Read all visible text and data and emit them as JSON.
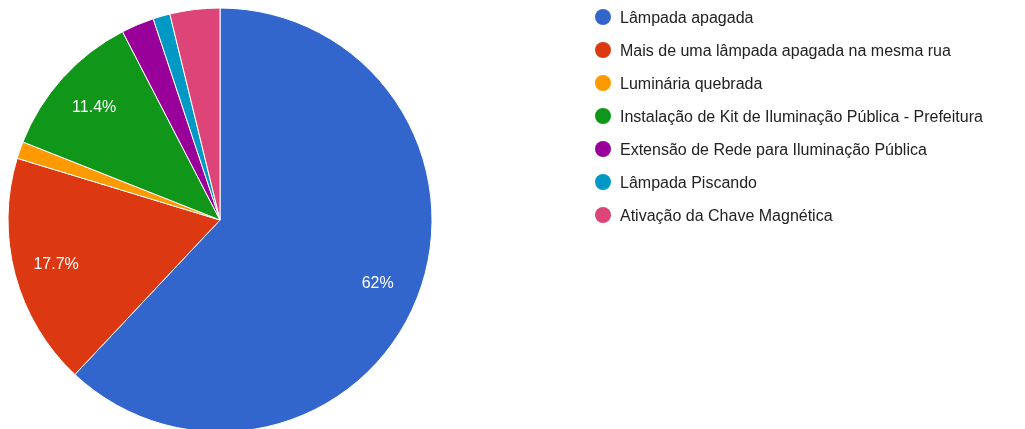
{
  "chart_data": {
    "type": "pie",
    "categories": [
      "Lâmpada apagada",
      "Mais de uma lâmpada apagada na mesma rua",
      "Luminária quebrada",
      "Instalação de Kit de Iluminação Pública - Prefeitura",
      "Extensão de Rede para Iluminação Pública",
      "Lâmpada Piscando",
      "Ativação da Chave Magnética"
    ],
    "values": [
      62,
      17.7,
      1.3,
      11.4,
      2.5,
      1.3,
      3.8
    ],
    "colors": [
      "#3366cc",
      "#dc3912",
      "#ff9900",
      "#109618",
      "#990099",
      "#0099c6",
      "#dd4477"
    ],
    "value_labels": [
      "62%",
      "17.7%",
      null,
      "11.4%",
      null,
      null,
      null
    ],
    "legend": "right"
  }
}
